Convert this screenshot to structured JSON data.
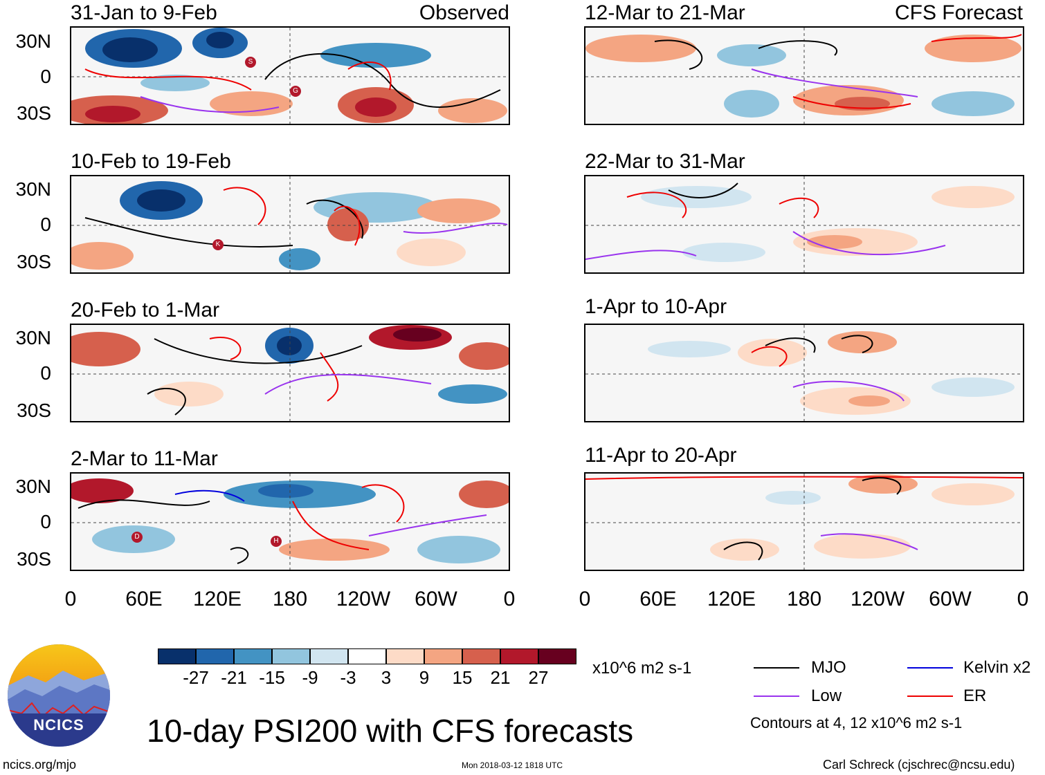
{
  "header": {
    "observed_label": "Observed",
    "forecast_label": "CFS Forecast"
  },
  "panels": [
    {
      "title": "31-Jan to 9-Feb",
      "kind": "observed"
    },
    {
      "title": "10-Feb to 19-Feb",
      "kind": "observed"
    },
    {
      "title": "20-Feb to 1-Mar",
      "kind": "observed"
    },
    {
      "title": "2-Mar to 11-Mar",
      "kind": "observed"
    },
    {
      "title": "12-Mar to 21-Mar",
      "kind": "forecast"
    },
    {
      "title": "22-Mar to 31-Mar",
      "kind": "forecast"
    },
    {
      "title": "1-Apr to 10-Apr",
      "kind": "forecast"
    },
    {
      "title": "11-Apr to 20-Apr",
      "kind": "forecast"
    }
  ],
  "axes": {
    "y_ticks": [
      "30N",
      "0",
      "30S"
    ],
    "x_ticks": [
      "0",
      "60E",
      "120E",
      "180",
      "120W",
      "60W",
      "0"
    ]
  },
  "storm_markers": {
    "p0": [
      "S",
      "G"
    ],
    "p1": [
      "K"
    ],
    "p3": [
      "D",
      "H"
    ]
  },
  "colorbar": {
    "colors": [
      "#08306b",
      "#2166ac",
      "#4393c3",
      "#92c5de",
      "#d1e5f0",
      "#ffffff",
      "#fddbc7",
      "#f4a582",
      "#d6604d",
      "#b2182b",
      "#67001f"
    ],
    "tick_labels": [
      "-27",
      "-21",
      "-15",
      "-9",
      "-3",
      "3",
      "9",
      "15",
      "21",
      "27"
    ],
    "units": "x10^6 m2 s-1"
  },
  "legend": {
    "items": [
      {
        "label": "MJO",
        "color": "#000000"
      },
      {
        "label": "Kelvin x2",
        "color": "#0000dd"
      },
      {
        "label": "Low",
        "color": "#9933ee"
      },
      {
        "label": "ER",
        "color": "#ee0000"
      }
    ],
    "contours_note": "Contours at 4, 12 x10^6 m2 s-1"
  },
  "title": "10-day PSI200 with CFS forecasts",
  "logo": {
    "text": "NCICS"
  },
  "footer": {
    "url": "ncics.org/mjo",
    "timestamp": "Mon 2018-03-12 1818 UTC",
    "credit": "Carl Schreck (cjschrec@ncsu.edu)"
  }
}
